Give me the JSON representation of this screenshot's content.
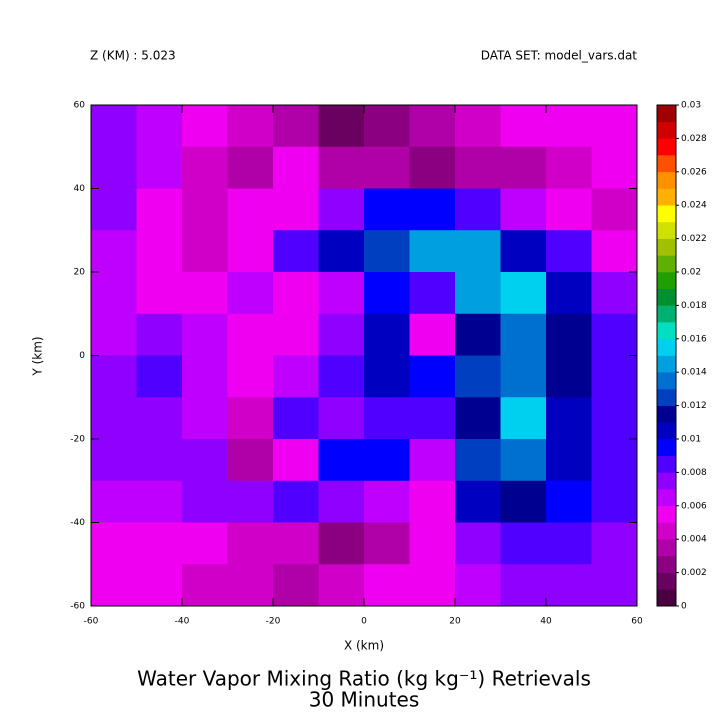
{
  "chart_data": {
    "type": "heatmap",
    "header_left": "Z (KM) : 5.023",
    "header_right": "DATA SET: model_vars.dat",
    "title": "Water Vapor Mixing Ratio (kg kg⁻¹) Retrievals",
    "subtitle": "30 Minutes",
    "xlabel": "X (km)",
    "ylabel": "Y (km)",
    "xlim": [
      -60,
      60
    ],
    "ylim": [
      -60,
      60
    ],
    "xticks": [
      -60,
      -40,
      -20,
      0,
      20,
      40,
      60
    ],
    "yticks": [
      -60,
      -40,
      -20,
      0,
      20,
      40,
      60
    ],
    "x": [
      -55,
      -45,
      -35,
      -25,
      -15,
      -5,
      5,
      15,
      25,
      35,
      45,
      55
    ],
    "y": [
      55,
      45,
      35,
      25,
      15,
      5,
      -5,
      -15,
      -25,
      -35,
      -45,
      -55
    ],
    "z": [
      [
        0.007,
        0.006,
        0.005,
        0.004,
        0.003,
        0.0015,
        0.002,
        0.003,
        0.004,
        0.005,
        0.005,
        0.005
      ],
      [
        0.007,
        0.006,
        0.004,
        0.003,
        0.005,
        0.003,
        0.003,
        0.002,
        0.003,
        0.003,
        0.004,
        0.005
      ],
      [
        0.007,
        0.005,
        0.004,
        0.005,
        0.005,
        0.007,
        0.009,
        0.009,
        0.008,
        0.006,
        0.005,
        0.004
      ],
      [
        0.006,
        0.005,
        0.004,
        0.005,
        0.008,
        0.01,
        0.012,
        0.014,
        0.014,
        0.01,
        0.008,
        0.005
      ],
      [
        0.006,
        0.005,
        0.005,
        0.006,
        0.005,
        0.006,
        0.009,
        0.008,
        0.014,
        0.015,
        0.01,
        0.007
      ],
      [
        0.006,
        0.007,
        0.006,
        0.005,
        0.005,
        0.007,
        0.01,
        0.005,
        0.011,
        0.013,
        0.011,
        0.008
      ],
      [
        0.007,
        0.008,
        0.006,
        0.005,
        0.006,
        0.008,
        0.01,
        0.009,
        0.012,
        0.013,
        0.011,
        0.008
      ],
      [
        0.007,
        0.007,
        0.006,
        0.004,
        0.008,
        0.007,
        0.008,
        0.008,
        0.011,
        0.015,
        0.01,
        0.008
      ],
      [
        0.007,
        0.007,
        0.007,
        0.003,
        0.005,
        0.009,
        0.009,
        0.006,
        0.012,
        0.013,
        0.01,
        0.008
      ],
      [
        0.006,
        0.006,
        0.007,
        0.007,
        0.008,
        0.007,
        0.006,
        0.005,
        0.01,
        0.011,
        0.009,
        0.008
      ],
      [
        0.005,
        0.005,
        0.005,
        0.004,
        0.004,
        0.002,
        0.003,
        0.005,
        0.007,
        0.008,
        0.008,
        0.007
      ],
      [
        0.005,
        0.005,
        0.004,
        0.004,
        0.003,
        0.004,
        0.005,
        0.005,
        0.006,
        0.007,
        0.007,
        0.007
      ]
    ],
    "colorbar": {
      "levels": [
        0,
        0.001,
        0.002,
        0.003,
        0.004,
        0.005,
        0.006,
        0.007,
        0.008,
        0.009,
        0.01,
        0.011,
        0.012,
        0.013,
        0.014,
        0.015,
        0.016,
        0.017,
        0.018,
        0.019,
        0.02,
        0.021,
        0.022,
        0.023,
        0.024,
        0.025,
        0.026,
        0.027,
        0.028,
        0.029,
        0.03
      ],
      "colors": [
        "#4a0040",
        "#6a0060",
        "#8a0080",
        "#b000a8",
        "#d000c8",
        "#f000f0",
        "#c000ff",
        "#9000ff",
        "#5000ff",
        "#0000ff",
        "#0000c0",
        "#000090",
        "#0040c0",
        "#0070d0",
        "#00a0e0",
        "#00d0f0",
        "#00e0c0",
        "#00b070",
        "#009030",
        "#20a000",
        "#60b000",
        "#a0c000",
        "#d0e000",
        "#ffff00",
        "#ffb000",
        "#ff9000",
        "#ff5000",
        "#ff0000",
        "#d00000",
        "#a00000"
      ],
      "ticks": [
        0,
        0.002,
        0.004,
        0.006,
        0.008,
        0.01,
        0.012,
        0.014,
        0.016,
        0.018,
        0.02,
        0.022,
        0.024,
        0.026,
        0.028,
        0.03
      ]
    }
  }
}
